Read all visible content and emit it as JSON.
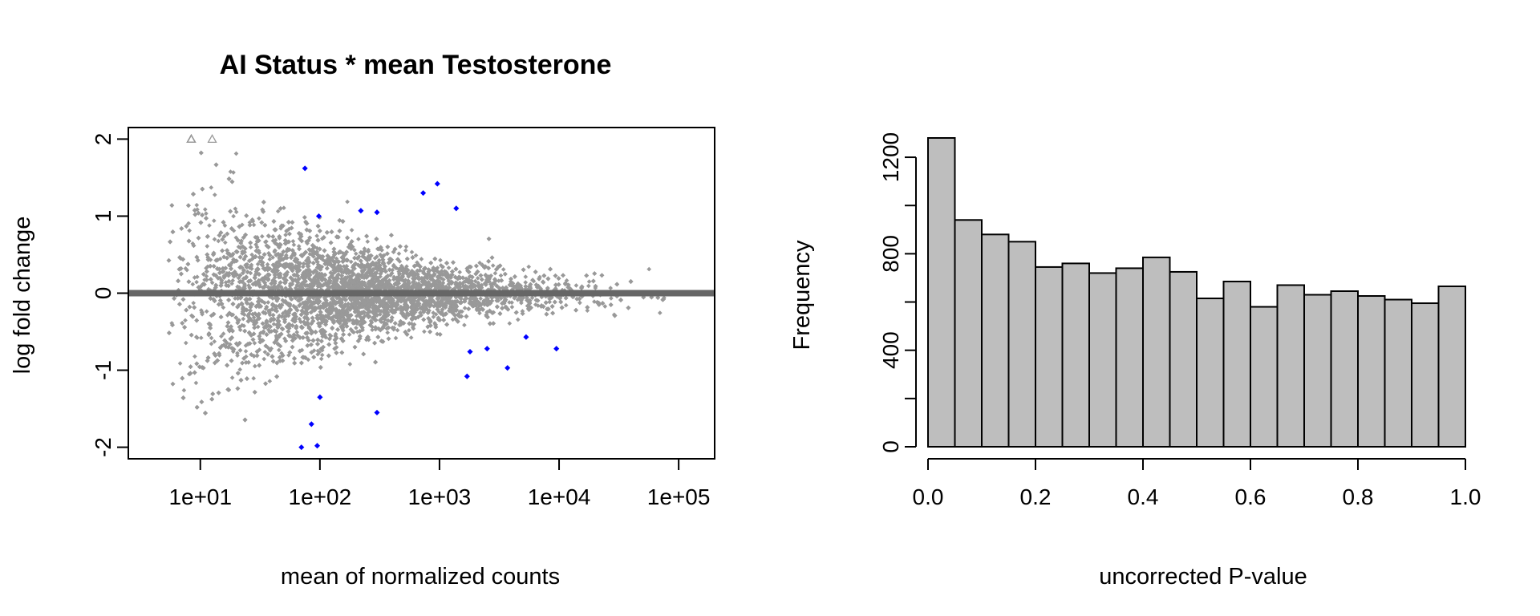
{
  "chart_data": [
    {
      "type": "scatter",
      "title": "AI Status * mean Testosterone",
      "xlabel": "mean of normalized counts",
      "ylabel": "log fold change",
      "x_scale": "log10",
      "xlim": [
        2.5,
        200000
      ],
      "ylim": [
        -2.15,
        2.15
      ],
      "x_ticks": [
        10,
        100,
        1000,
        10000,
        100000
      ],
      "x_tick_labels": [
        "1e+01",
        "1e+02",
        "1e+03",
        "1e+04",
        "1e+05"
      ],
      "y_ticks": [
        -2,
        -1,
        0,
        1,
        2
      ],
      "y_tick_labels": [
        "-2",
        "-1",
        "0",
        "1",
        "2"
      ],
      "reference_line_y": 0,
      "grid": false,
      "legend": "none",
      "point_count_approx": 13000,
      "colors": {
        "nonsignificant": "#999999",
        "significant": "#0000ff",
        "reference_line": "#666666",
        "clipped_marker": "#999999"
      },
      "significant_points": [
        {
          "x": 75,
          "y": 1.62
        },
        {
          "x": 98,
          "y": 1.0
        },
        {
          "x": 220,
          "y": 1.07
        },
        {
          "x": 300,
          "y": 1.05
        },
        {
          "x": 730,
          "y": 1.3
        },
        {
          "x": 960,
          "y": 1.42
        },
        {
          "x": 1380,
          "y": 1.1
        },
        {
          "x": 3700,
          "y": -0.97
        },
        {
          "x": 1700,
          "y": -1.08
        },
        {
          "x": 5300,
          "y": -0.57
        },
        {
          "x": 9500,
          "y": -0.72
        },
        {
          "x": 2500,
          "y": -0.72
        },
        {
          "x": 1800,
          "y": -0.76
        },
        {
          "x": 300,
          "y": -1.55
        },
        {
          "x": 100,
          "y": -1.35
        },
        {
          "x": 85,
          "y": -1.7
        },
        {
          "x": 95,
          "y": -1.98
        },
        {
          "x": 70,
          "y": -2.0
        }
      ]
    },
    {
      "type": "bar",
      "title": "",
      "xlabel": "uncorrected P-value",
      "ylabel": "Frequency",
      "bin_edges": [
        0.0,
        0.05,
        0.1,
        0.15,
        0.2,
        0.25,
        0.3,
        0.35,
        0.4,
        0.45,
        0.5,
        0.55,
        0.6,
        0.65,
        0.7,
        0.75,
        0.8,
        0.85,
        0.9,
        0.95,
        1.0
      ],
      "values": [
        1280,
        940,
        880,
        850,
        745,
        760,
        720,
        740,
        785,
        725,
        615,
        685,
        580,
        670,
        630,
        645,
        625,
        610,
        595,
        665
      ],
      "xlim": [
        0,
        1
      ],
      "ylim": [
        0,
        1280
      ],
      "x_ticks": [
        0.0,
        0.2,
        0.4,
        0.6,
        0.8,
        1.0
      ],
      "x_tick_labels": [
        "0.0",
        "0.2",
        "0.4",
        "0.6",
        "0.8",
        "1.0"
      ],
      "y_ticks": [
        0,
        200,
        400,
        600,
        800,
        1000,
        1200
      ],
      "y_tick_labels": [
        "0",
        "",
        "400",
        "",
        "800",
        "",
        "1200"
      ],
      "grid": false,
      "legend": "none",
      "colors": {
        "bar_fill": "#bebebe",
        "bar_stroke": "#000000"
      }
    }
  ]
}
